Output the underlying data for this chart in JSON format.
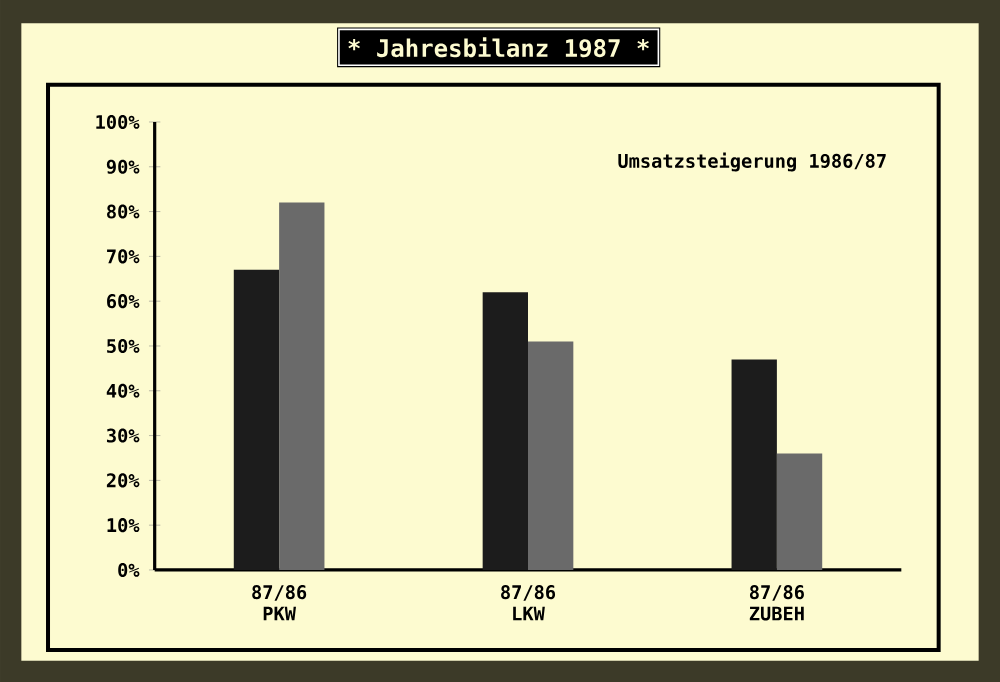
{
  "chart_data": {
    "type": "bar",
    "title": "* Jahresbilanz 1987 *",
    "subtitle": "Umsatzsteigerung  1986/87",
    "categories": [
      "87/86 PKW",
      "87/86 LKW",
      "87/86 ZUBEH"
    ],
    "series": [
      {
        "color": "#1c1c1c",
        "values": [
          67,
          62,
          47
        ]
      },
      {
        "color": "#6a6a6a",
        "values": [
          82,
          51,
          26
        ]
      }
    ],
    "ylim": [
      0,
      100
    ],
    "yticks": [
      {
        "value": 0,
        "label": "0%"
      },
      {
        "value": 10,
        "label": "10%"
      },
      {
        "value": 20,
        "label": "20%"
      },
      {
        "value": 30,
        "label": "30%"
      },
      {
        "value": 40,
        "label": "40%"
      },
      {
        "value": 50,
        "label": "50%"
      },
      {
        "value": 60,
        "label": "60%"
      },
      {
        "value": 70,
        "label": "70%"
      },
      {
        "value": 80,
        "label": "80%"
      },
      {
        "value": 90,
        "label": "90%"
      },
      {
        "value": 100,
        "label": "100%"
      }
    ],
    "grid": false
  }
}
